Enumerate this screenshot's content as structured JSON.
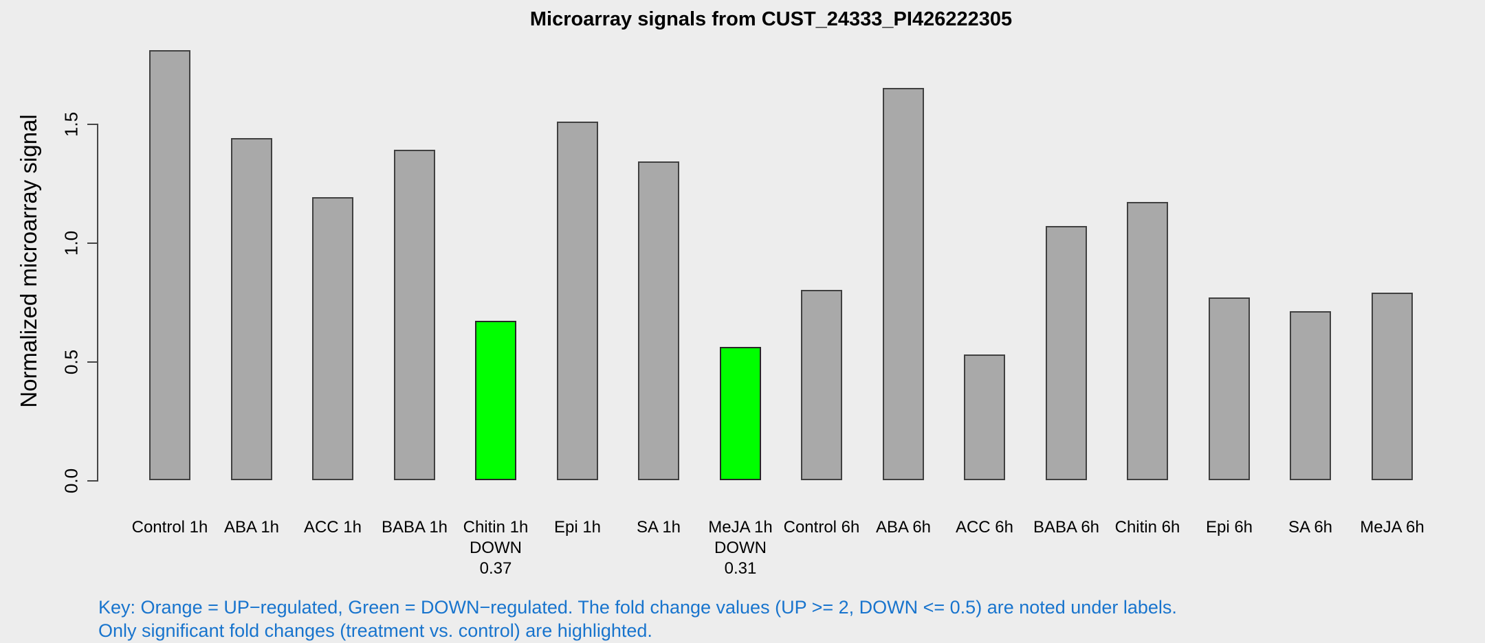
{
  "title": "Microarray signals from CUST_24333_PI426222305",
  "chart_data": {
    "type": "bar",
    "title": "Microarray signals from CUST_24333_PI426222305",
    "xlabel": "",
    "ylabel": "Normalized microarray signal",
    "ylim": [
      0,
      1.85
    ],
    "yticks": [
      "0.0",
      "0.5",
      "1.0",
      "1.5"
    ],
    "grid": false,
    "legend_position": "none",
    "categories": [
      "Control 1h",
      "ABA 1h",
      "ACC 1h",
      "BABA 1h",
      "Chitin 1h",
      "Epi 1h",
      "SA 1h",
      "MeJA 1h",
      "Control 6h",
      "ABA 6h",
      "ACC 6h",
      "BABA 6h",
      "Chitin 6h",
      "Epi 6h",
      "SA 6h",
      "MeJA 6h"
    ],
    "values": [
      1.81,
      1.44,
      1.19,
      1.39,
      0.67,
      1.51,
      1.34,
      0.56,
      0.8,
      1.65,
      0.53,
      1.07,
      1.17,
      0.77,
      0.71,
      0.79
    ],
    "annotations": [
      null,
      null,
      null,
      null,
      {
        "note": "DOWN",
        "fold": "0.37"
      },
      null,
      null,
      {
        "note": "DOWN",
        "fold": "0.31"
      },
      null,
      null,
      null,
      null,
      null,
      null,
      null,
      null
    ],
    "colors": {
      "background": "#EDEDED",
      "bar_fill": "#A9A9A9",
      "bar_border": "#404040",
      "down_regulated_fill": "#00FF00",
      "axis": "#454545",
      "text": "#000000",
      "key_text": "#1874CD"
    }
  },
  "footer": {
    "line1": "Key: Orange = UP−regulated, Green = DOWN−regulated. The fold change values (UP >= 2, DOWN <= 0.5) are noted under labels.",
    "line2": "Only significant fold changes (treatment vs. control) are highlighted."
  }
}
